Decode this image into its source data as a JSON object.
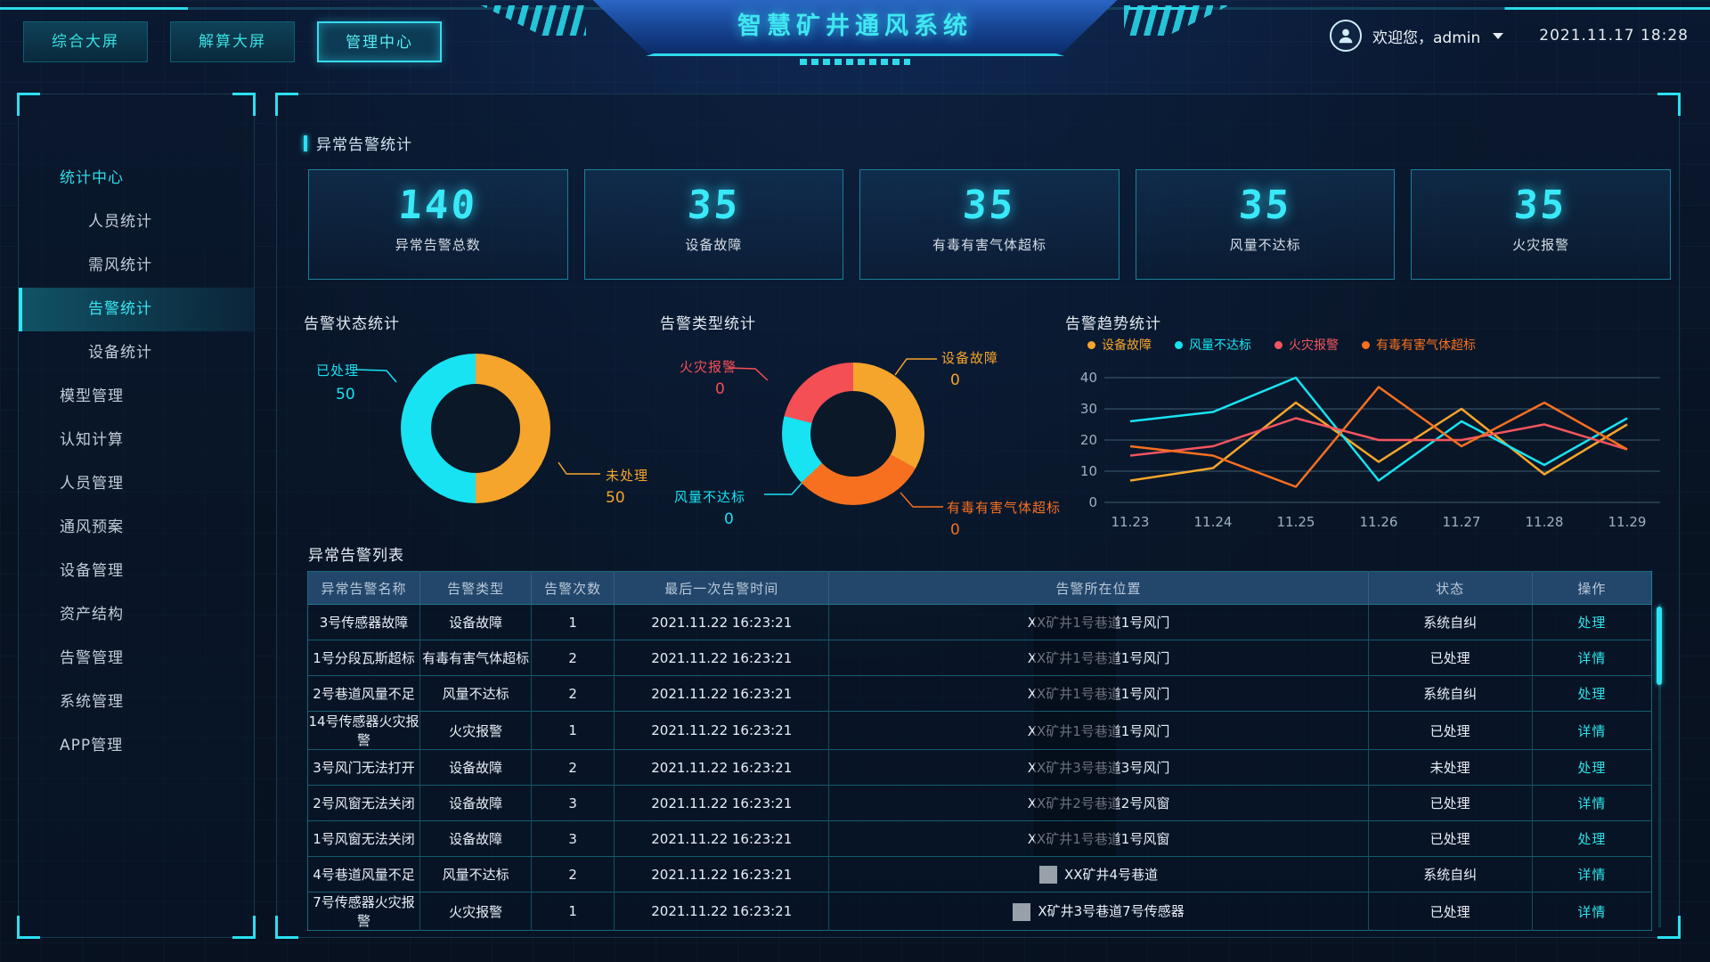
{
  "header": {
    "nav": [
      {
        "label": "综合大屏",
        "active": false
      },
      {
        "label": "解算大屏",
        "active": false
      },
      {
        "label": "管理中心",
        "active": true
      }
    ],
    "title": "智慧矿井通风系统",
    "welcome_prefix": "欢迎您，",
    "username": "admin",
    "datetime": "2021.11.17 18:28"
  },
  "sidebar": {
    "items": [
      {
        "label": "统计中心",
        "active": true,
        "children": [
          {
            "label": "人员统计",
            "active": false
          },
          {
            "label": "需风统计",
            "active": false
          },
          {
            "label": "告警统计",
            "active": true
          },
          {
            "label": "设备统计",
            "active": false
          }
        ]
      },
      {
        "label": "模型管理"
      },
      {
        "label": "认知计算"
      },
      {
        "label": "人员管理"
      },
      {
        "label": "通风预案"
      },
      {
        "label": "设备管理"
      },
      {
        "label": "资产结构"
      },
      {
        "label": "告警管理"
      },
      {
        "label": "系统管理"
      },
      {
        "label": "APP管理"
      }
    ]
  },
  "stats": {
    "section_title": "异常告警统计",
    "cards": [
      {
        "value": "140",
        "label": "异常告警总数"
      },
      {
        "value": "35",
        "label": "设备故障"
      },
      {
        "value": "35",
        "label": "有毒有害气体超标"
      },
      {
        "value": "35",
        "label": "风量不达标"
      },
      {
        "value": "35",
        "label": "火灾报警"
      }
    ]
  },
  "chart_data": [
    {
      "type": "pie",
      "title": "告警状态统计",
      "slices": [
        {
          "label": "未处理",
          "value": 50,
          "pct": 50,
          "color": "#f5a52b"
        },
        {
          "label": "已处理",
          "value": 50,
          "pct": 50,
          "color": "#17e3f2"
        }
      ]
    },
    {
      "type": "pie",
      "title": "告警类型统计",
      "slices": [
        {
          "label": "设备故障",
          "value": 0,
          "pct": 33,
          "color": "#f5a52b"
        },
        {
          "label": "有毒有害气体超标",
          "value": 0,
          "pct": 30,
          "color": "#f7701f"
        },
        {
          "label": "风量不达标",
          "value": 0,
          "pct": 16,
          "color": "#17e3f2"
        },
        {
          "label": "火灾报警",
          "value": 0,
          "pct": 21,
          "color": "#f44f55"
        }
      ]
    },
    {
      "type": "line",
      "title": "告警趋势统计",
      "x": [
        "11.23",
        "11.24",
        "11.25",
        "11.26",
        "11.27",
        "11.28",
        "11.29"
      ],
      "ylim": [
        0,
        40
      ],
      "yticks": [
        0,
        10,
        20,
        30,
        40
      ],
      "legend_position": "top",
      "grid": true,
      "series": [
        {
          "name": "设备故障",
          "color": "#f5a52b",
          "values": [
            7,
            11,
            32,
            13,
            30,
            9,
            25
          ]
        },
        {
          "name": "风量不达标",
          "color": "#17e3f2",
          "values": [
            26,
            29,
            40,
            7,
            26,
            12,
            27
          ]
        },
        {
          "name": "火灾报警",
          "color": "#f4555f",
          "values": [
            15,
            18,
            27,
            20,
            20,
            25,
            17
          ]
        },
        {
          "name": "有毒有害气体超标",
          "color": "#f7701f",
          "values": [
            18,
            15,
            5,
            37,
            18,
            32,
            17
          ]
        }
      ]
    }
  ],
  "table": {
    "title": "异常告警列表",
    "columns": [
      "异常告警名称",
      "告警类型",
      "告警次数",
      "最后一次告警时间",
      "告警所在位置",
      "状态",
      "操作"
    ],
    "rows": [
      {
        "name": "3号传感器故障",
        "type": "设备故障",
        "count": "1",
        "time": "2021.11.22 16:23:21",
        "location": "XX矿井1号巷道1号风门",
        "status": "系统自纠",
        "action": "处理",
        "marker": "dark"
      },
      {
        "name": "1号分段瓦斯超标",
        "type": "有毒有害气体超标",
        "count": "2",
        "time": "2021.11.22 16:23:21",
        "location": "XX矿井1号巷道1号风门",
        "status": "已处理",
        "action": "详情",
        "marker": "dark"
      },
      {
        "name": "2号巷道风量不足",
        "type": "风量不达标",
        "count": "2",
        "time": "2021.11.22 16:23:21",
        "location": "XX矿井1号巷道1号风门",
        "status": "系统自纠",
        "action": "处理",
        "marker": "dark"
      },
      {
        "name": "14号传感器火灾报警",
        "type": "火灾报警",
        "count": "1",
        "time": "2021.11.22 16:23:21",
        "location": "XX矿井1号巷道1号风门",
        "status": "已处理",
        "action": "详情",
        "marker": "dark"
      },
      {
        "name": "3号风门无法打开",
        "type": "设备故障",
        "count": "2",
        "time": "2021.11.22 16:23:21",
        "location": "XX矿井3号巷道3号风门",
        "status": "未处理",
        "action": "处理",
        "marker": "dark"
      },
      {
        "name": "2号风窗无法关闭",
        "type": "设备故障",
        "count": "3",
        "time": "2021.11.22 16:23:21",
        "location": "XX矿井2号巷道2号风窗",
        "status": "已处理",
        "action": "详情",
        "marker": "dark"
      },
      {
        "name": "1号风窗无法关闭",
        "type": "设备故障",
        "count": "3",
        "time": "2021.11.22 16:23:21",
        "location": "XX矿井1号巷道1号风窗",
        "status": "已处理",
        "action": "处理",
        "marker": "dark"
      },
      {
        "name": "4号巷道风量不足",
        "type": "风量不达标",
        "count": "2",
        "time": "2021.11.22 16:23:21",
        "location": "XX矿井4号巷道",
        "status": "系统自纠",
        "action": "详情",
        "marker": "grey"
      },
      {
        "name": "7号传感器火灾报警",
        "type": "火灾报警",
        "count": "1",
        "time": "2021.11.22 16:23:21",
        "location": "X矿井3号巷道7号传感器",
        "status": "已处理",
        "action": "详情",
        "marker": "grey"
      }
    ]
  }
}
